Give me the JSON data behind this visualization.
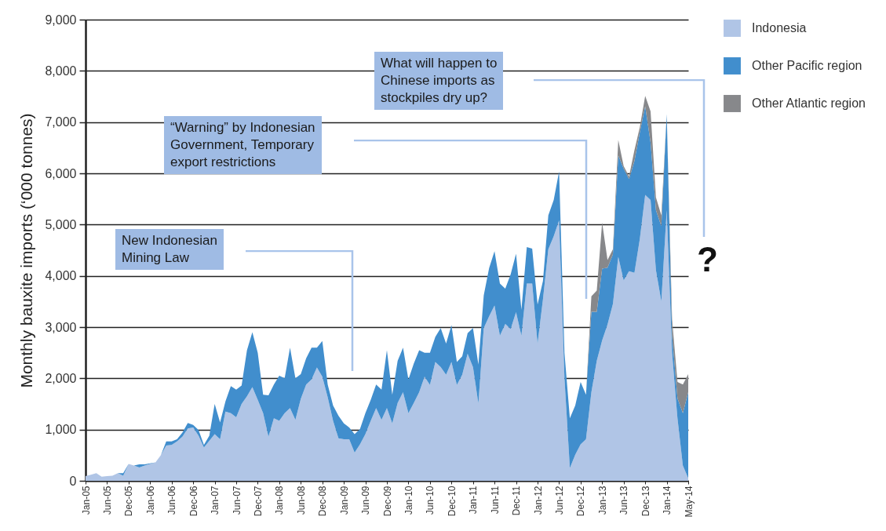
{
  "chart_data": {
    "type": "area",
    "stacked": true,
    "ylabel": "Monthly bauxite imports (‘000 tonnes)",
    "categories": [
      "Jan-05",
      null,
      null,
      null,
      "Jun-05",
      null,
      null,
      null,
      "Dec-05",
      null,
      null,
      null,
      "Jan-06",
      null,
      null,
      null,
      "Jun-06",
      null,
      null,
      null,
      "Dec-06",
      null,
      null,
      null,
      "Jan-07",
      null,
      null,
      null,
      "Jun-07",
      null,
      null,
      null,
      "Dec-07",
      null,
      null,
      null,
      "Jan-08",
      null,
      null,
      null,
      "Jun-08",
      null,
      null,
      null,
      "Dec-08",
      null,
      null,
      null,
      "Jan-09",
      null,
      null,
      null,
      "Jun-09",
      null,
      null,
      null,
      "Dec-09",
      null,
      null,
      null,
      "Jan-10",
      null,
      null,
      null,
      "Jun-10",
      null,
      null,
      null,
      "Dec-10",
      null,
      null,
      null,
      "Jan-11",
      null,
      null,
      null,
      "Jun-11",
      null,
      null,
      null,
      "Dec-11",
      null,
      null,
      null,
      "Jan-12",
      null,
      null,
      null,
      "Jun-12",
      null,
      null,
      null,
      "Dec-12",
      null,
      null,
      null,
      "Jan-13",
      null,
      null,
      null,
      "Jun-13",
      null,
      null,
      null,
      "Dec-13",
      null,
      null,
      null,
      "Jan-14",
      null,
      null,
      null,
      "May-14"
    ],
    "series": [
      {
        "name": "Indonesia",
        "color": "#b0c5e6",
        "values": [
          90,
          120,
          150,
          80,
          90,
          100,
          150,
          100,
          330,
          300,
          260,
          300,
          330,
          360,
          500,
          690,
          700,
          770,
          860,
          1020,
          1040,
          880,
          650,
          780,
          910,
          810,
          1350,
          1320,
          1240,
          1500,
          1650,
          1830,
          1580,
          1320,
          860,
          1220,
          1170,
          1320,
          1420,
          1190,
          1600,
          1880,
          1980,
          2210,
          2030,
          1630,
          1170,
          830,
          810,
          810,
          550,
          710,
          910,
          1170,
          1420,
          1190,
          1420,
          1120,
          1520,
          1730,
          1320,
          1520,
          1730,
          2030,
          1870,
          2320,
          2220,
          2070,
          2320,
          1870,
          2070,
          2480,
          2220,
          1510,
          2980,
          3210,
          3420,
          2830,
          3060,
          2960,
          3290,
          2830,
          3850,
          3850,
          2680,
          3540,
          4520,
          4770,
          5080,
          2000,
          250,
          510,
          710,
          810,
          1730,
          2340,
          2740,
          3050,
          3450,
          4370,
          3910,
          4090,
          4060,
          4720,
          5580,
          5480,
          4110,
          3500,
          5280,
          2490,
          1220,
          300,
          50
        ]
      },
      {
        "name": "Other Pacific region",
        "color": "#418ecd",
        "values": [
          0,
          0,
          0,
          0,
          0,
          0,
          0,
          50,
          0,
          0,
          60,
          20,
          10,
          0,
          0,
          80,
          70,
          40,
          80,
          110,
          50,
          110,
          50,
          100,
          590,
          330,
          200,
          530,
          540,
          360,
          900,
          1070,
          920,
          360,
          810,
          660,
          880,
          680,
          1180,
          810,
          480,
          510,
          620,
          390,
          700,
          250,
          300,
          440,
          310,
          230,
          360,
          300,
          410,
          410,
          460,
          590,
          1130,
          560,
          820,
          870,
          660,
          770,
          820,
          470,
          630,
          490,
          760,
          610,
          720,
          450,
          360,
          400,
          760,
          760,
          640,
          940,
          1060,
          1020,
          690,
          1070,
          1140,
          510,
          710,
          680,
          760,
          360,
          660,
          710,
          960,
          500,
          970,
          960,
          1220,
          870,
          1570,
          960,
          1400,
          1110,
          970,
          1980,
          2180,
          1800,
          2180,
          2080,
          1730,
          1120,
          1170,
          1470,
          1880,
          350,
          390,
          1020,
          1680
        ]
      },
      {
        "name": "Other Atlantic region",
        "color": "#87888b",
        "values": [
          0,
          0,
          0,
          0,
          0,
          0,
          0,
          0,
          0,
          0,
          0,
          0,
          0,
          0,
          0,
          0,
          0,
          0,
          0,
          0,
          0,
          0,
          0,
          0,
          0,
          0,
          0,
          0,
          0,
          0,
          0,
          0,
          0,
          0,
          0,
          0,
          0,
          0,
          0,
          0,
          0,
          0,
          0,
          0,
          0,
          0,
          0,
          0,
          0,
          0,
          0,
          0,
          0,
          0,
          0,
          0,
          0,
          0,
          0,
          0,
          0,
          0,
          0,
          0,
          0,
          0,
          0,
          0,
          0,
          0,
          0,
          0,
          0,
          0,
          0,
          0,
          0,
          0,
          0,
          0,
          0,
          0,
          0,
          0,
          0,
          0,
          0,
          0,
          0,
          0,
          0,
          0,
          0,
          0,
          300,
          410,
          900,
          150,
          100,
          300,
          50,
          50,
          210,
          100,
          200,
          610,
          250,
          210,
          0,
          310,
          320,
          560,
          350
        ]
      }
    ],
    "ylim": [
      0,
      9000
    ],
    "yticks": [
      0,
      {
        "value": 1000,
        "label": "1,000"
      },
      {
        "value": 2000,
        "label": "2,000"
      },
      {
        "value": 3000,
        "label": "3,000"
      },
      {
        "value": 4000,
        "label": "4,000"
      },
      {
        "value": 5000,
        "label": "5,000"
      },
      {
        "value": 6000,
        "label": "6,000"
      },
      {
        "value": 7000,
        "label": "7,000"
      },
      {
        "value": 8000,
        "label": "8,000"
      },
      {
        "value": 9000,
        "label": "9,000"
      }
    ],
    "grid": "y",
    "legend": "top right",
    "annotations": [
      "New Indonesian\nMining Law",
      "“Warning” by Indonesian\nGovernment, Temporary\nexport restrictions",
      "What will happen to\nChinese imports as\nstockpiles dry up?",
      "?"
    ]
  }
}
